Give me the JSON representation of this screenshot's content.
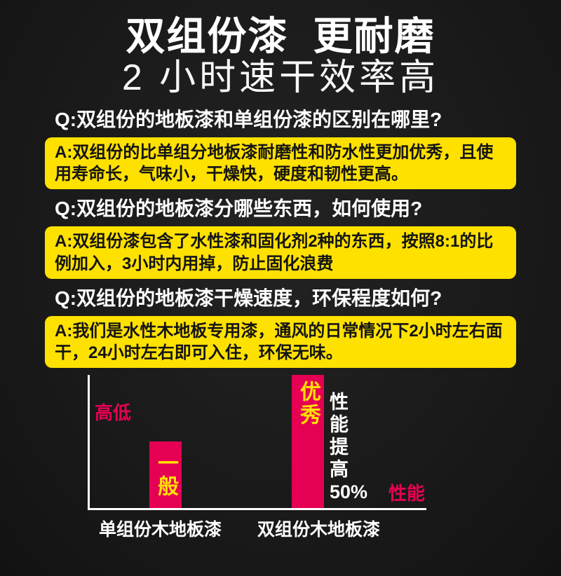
{
  "header": {
    "title_line1": "双组份漆  更耐磨",
    "title_line2": "2 小时速干效率高"
  },
  "qa": [
    {
      "q": "Q:双组份的地板漆和单组份漆的区别在哪里?",
      "a": "A:双组份的比单组分地板漆耐磨性和防水性更加优秀，且使用寿命长，气味小，干燥快，硬度和韧性更高。"
    },
    {
      "q": "Q:双组份的地板漆分哪些东西，如何使用?",
      "a": "A:双组份漆包含了水性漆和固化剂2种的东西，按照8:1的比例加入，3小时内用掉，防止固化浪费"
    },
    {
      "q": "Q:双组份的地板漆干燥速度，环保程度如何?",
      "a": "A:我们是水性木地板专用漆，通风的日常情况下2小时左右面干，24小时左右即可入住，环保无味。"
    }
  ],
  "chart": {
    "annotation_lines": [
      "性",
      "能",
      "提",
      "高",
      "50%"
    ],
    "bar_color": "#e60053"
  },
  "chart_data": {
    "type": "bar",
    "categories": [
      "单组份木地板漆",
      "双组份木地板漆"
    ],
    "values": [
      50,
      100
    ],
    "bar_labels": [
      "一般",
      "优秀"
    ],
    "title": "",
    "xlabel": "性能",
    "ylabel": "高低",
    "ylim": [
      0,
      100
    ],
    "grid": false,
    "legend": false,
    "annotations": [
      "性能提高50%"
    ]
  },
  "colors": {
    "background": "#1a1a1a",
    "answer_box_yellow": "#ffe100",
    "accent_pink": "#e60053",
    "title_white": "#ffffff",
    "answer_text_black": "#141414"
  }
}
